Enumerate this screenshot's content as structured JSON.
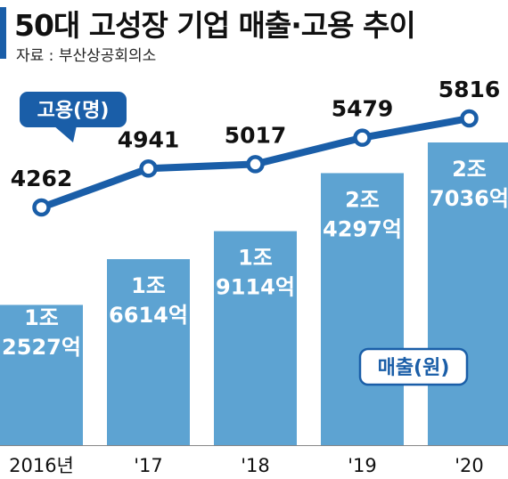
{
  "title": "50대 고성장 기업 매출·고용 추이",
  "source": "자료 : 부산상공회의소",
  "colors": {
    "bar": "#5da3d2",
    "line": "#1a5ea8",
    "accent": "#1a5ea8",
    "baseline": "#888888"
  },
  "chart_data": {
    "type": "bar+line",
    "categories": [
      "2016년",
      "'17",
      "'18",
      "'19",
      "'20"
    ],
    "series": [
      {
        "name": "매출(원)",
        "type": "bar",
        "values": [
          12527,
          16614,
          19114,
          24297,
          27036
        ],
        "labels": [
          [
            "1조",
            "2527억"
          ],
          [
            "1조",
            "6614억"
          ],
          [
            "1조",
            "9114억"
          ],
          [
            "2조",
            "4297억"
          ],
          [
            "2조",
            "7036억"
          ]
        ]
      },
      {
        "name": "고용(명)",
        "type": "line",
        "values": [
          4262,
          4941,
          5017,
          5479,
          5816
        ],
        "labels": [
          "4262",
          "4941",
          "5017",
          "5479",
          "5816"
        ]
      }
    ],
    "legend_badges": {
      "line": "고용(명)",
      "bar": "매출(원)"
    }
  }
}
